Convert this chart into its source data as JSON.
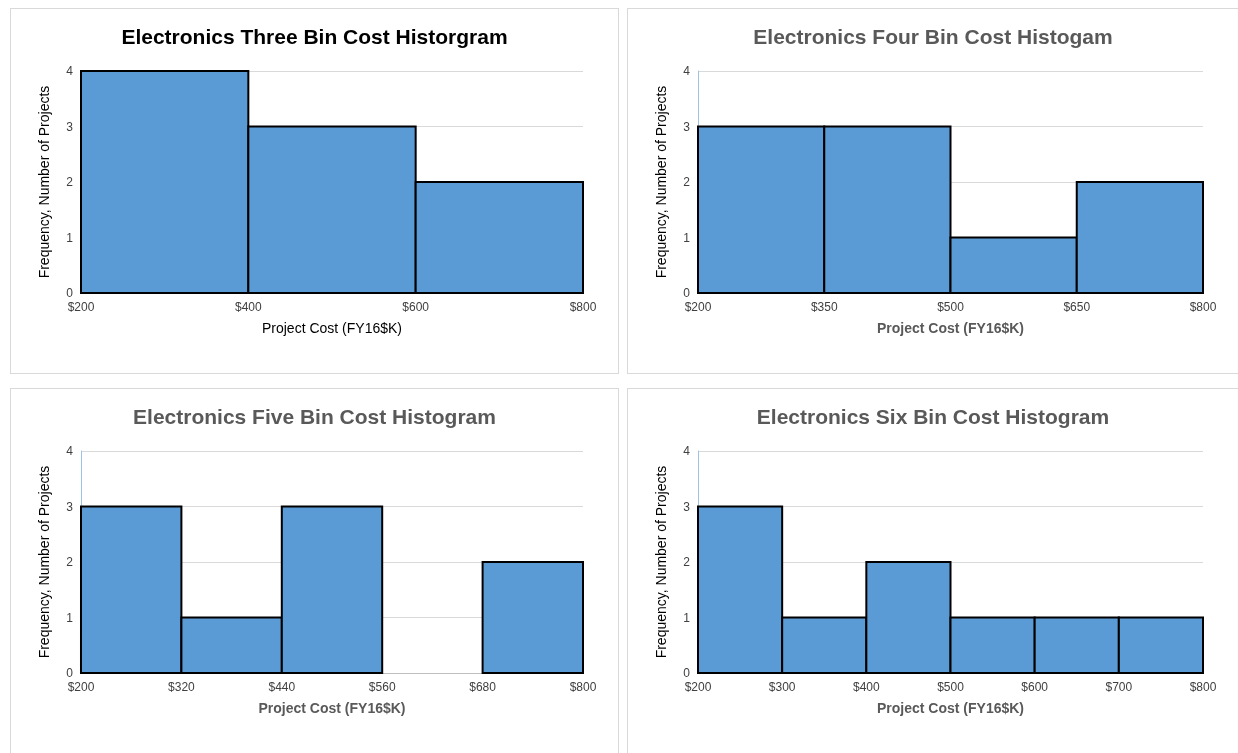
{
  "chart_data": [
    {
      "type": "histogram",
      "title": "Electronics Three Bin Cost Historgram",
      "xlabel": "Project Cost (FY16$K)",
      "ylabel": "Frequency, Number of Projects",
      "bins": [
        200,
        400,
        600,
        800
      ],
      "values": [
        4,
        3,
        2
      ],
      "color": "#5b9bd5",
      "xlim": [
        200,
        800
      ],
      "xticks": [
        {
          "value": 200,
          "label": "$200"
        },
        {
          "value": 400,
          "label": "$400"
        },
        {
          "value": 600,
          "label": "$600"
        },
        {
          "value": 800,
          "label": "$800"
        }
      ],
      "ylim": [
        0,
        4
      ],
      "yticks": [
        0,
        1,
        2,
        3,
        4
      ],
      "grid": "y"
    },
    {
      "type": "histogram",
      "title": "Electronics Four Bin Cost Histogam",
      "xlabel": "Project Cost (FY16$K)",
      "ylabel": "Frequency, Number of Projects",
      "bins": [
        200,
        350,
        500,
        650,
        800
      ],
      "values": [
        3,
        3,
        1,
        2
      ],
      "color": "#5b9bd5",
      "xlim": [
        200,
        800
      ],
      "xticks": [
        {
          "value": 200,
          "label": "$200"
        },
        {
          "value": 350,
          "label": "$350"
        },
        {
          "value": 500,
          "label": "$500"
        },
        {
          "value": 650,
          "label": "$650"
        },
        {
          "value": 800,
          "label": "$800"
        }
      ],
      "ylim": [
        0,
        4
      ],
      "yticks": [
        0,
        1,
        2,
        3,
        4
      ],
      "grid": "y"
    },
    {
      "type": "histogram",
      "title": "Electronics Five Bin Cost Histogram",
      "xlabel": "Project Cost (FY16$K)",
      "ylabel": "Frequency, Number of Projects",
      "bins": [
        200,
        320,
        440,
        560,
        680,
        800
      ],
      "values": [
        3,
        1,
        3,
        0,
        2
      ],
      "color": "#5b9bd5",
      "xlim": [
        200,
        800
      ],
      "xticks": [
        {
          "value": 200,
          "label": "$200"
        },
        {
          "value": 320,
          "label": "$320"
        },
        {
          "value": 440,
          "label": "$440"
        },
        {
          "value": 560,
          "label": "$560"
        },
        {
          "value": 680,
          "label": "$680"
        },
        {
          "value": 800,
          "label": "$800"
        }
      ],
      "ylim": [
        0,
        4
      ],
      "yticks": [
        0,
        1,
        2,
        3,
        4
      ],
      "grid": "y"
    },
    {
      "type": "histogram",
      "title": "Electronics Six Bin Cost Histogram",
      "xlabel": "Project Cost (FY16$K)",
      "ylabel": "Frequency, Number of Projects",
      "bins": [
        200,
        300,
        400,
        500,
        600,
        700,
        800
      ],
      "values": [
        3,
        1,
        2,
        1,
        1,
        1
      ],
      "color": "#5b9bd5",
      "xlim": [
        200,
        800
      ],
      "xticks": [
        {
          "value": 200,
          "label": "$200"
        },
        {
          "value": 300,
          "label": "$300"
        },
        {
          "value": 400,
          "label": "$400"
        },
        {
          "value": 500,
          "label": "$500"
        },
        {
          "value": 600,
          "label": "$600"
        },
        {
          "value": 700,
          "label": "$700"
        },
        {
          "value": 800,
          "label": "$800"
        }
      ],
      "ylim": [
        0,
        4
      ],
      "yticks": [
        0,
        1,
        2,
        3,
        4
      ],
      "grid": "y"
    }
  ]
}
